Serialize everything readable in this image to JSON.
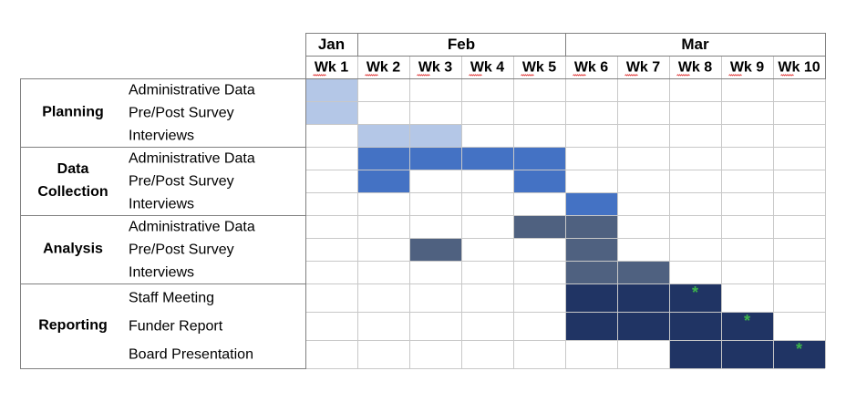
{
  "chart_data": {
    "type": "table",
    "title": "",
    "months": [
      {
        "label": "Jan",
        "weeks": 1
      },
      {
        "label": "Feb",
        "weeks": 4
      },
      {
        "label": "Mar",
        "weeks": 5
      }
    ],
    "weeks": [
      "Wk 1",
      "Wk 2",
      "Wk 3",
      "Wk 4",
      "Wk 5",
      "Wk 6",
      "Wk 7",
      "Wk 8",
      "Wk 9",
      "Wk 10"
    ],
    "phases": [
      {
        "label": "Planning",
        "label_lines": [
          "Planning"
        ],
        "color": "#b4c7e7",
        "tasks": [
          {
            "label": "Administrative Data",
            "weeks": [
              1
            ]
          },
          {
            "label": "Pre/Post Survey",
            "weeks": [
              1
            ]
          },
          {
            "label": "Interviews",
            "weeks": [
              2,
              3
            ]
          }
        ]
      },
      {
        "label": "Data Collection",
        "label_lines": [
          "Data",
          "Collection"
        ],
        "color": "#4472c4",
        "tasks": [
          {
            "label": "Administrative Data",
            "weeks": [
              2,
              3,
              4,
              5
            ]
          },
          {
            "label": "Pre/Post Survey",
            "weeks": [
              2,
              5
            ]
          },
          {
            "label": "Interviews",
            "weeks": [
              6
            ]
          }
        ]
      },
      {
        "label": "Analysis",
        "label_lines": [
          "Analysis"
        ],
        "color": "#4f6180",
        "tasks": [
          {
            "label": "Administrative Data",
            "weeks": [
              5,
              6
            ]
          },
          {
            "label": "Pre/Post Survey",
            "weeks": [
              3,
              6
            ]
          },
          {
            "label": "Interviews",
            "weeks": [
              6,
              7
            ]
          }
        ]
      },
      {
        "label": "Reporting",
        "label_lines": [
          "Reporting"
        ],
        "color": "#203464",
        "tasks": [
          {
            "label": "Staff Meeting",
            "weeks": [
              6,
              7,
              8
            ],
            "milestone_week": 8
          },
          {
            "label": "Funder Report",
            "weeks": [
              6,
              7,
              8,
              9
            ],
            "milestone_week": 9
          },
          {
            "label": "Board Presentation",
            "weeks": [
              8,
              9,
              10
            ],
            "milestone_week": 10
          }
        ]
      }
    ],
    "milestone_symbol": "*",
    "milestone_color": "#3cb44b",
    "grid_color": "#c8c8c8",
    "border_color": "#808080"
  }
}
